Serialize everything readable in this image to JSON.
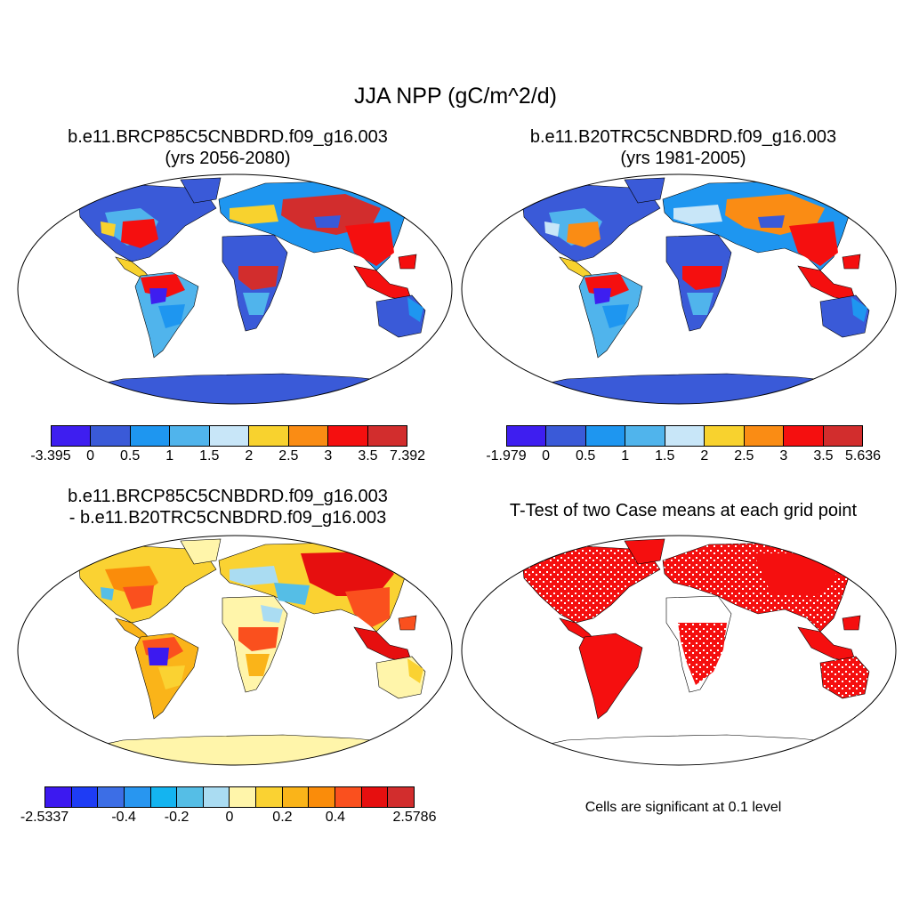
{
  "title": "JJA NPP (gC/m^2/d)",
  "panels": [
    {
      "title_lines": [
        "b.e11.BRCP85C5CNBDRD.f09_g16.003",
        "(yrs 2056-2080)"
      ],
      "colorbar": {
        "colors": [
          "#3e1ef0",
          "#3a5ad8",
          "#1e96f0",
          "#50b4ec",
          "#c8e6f8",
          "#f8d22e",
          "#fa8c14",
          "#f50f0f",
          "#d22d2d"
        ],
        "ticks": [
          "-3.395",
          "0",
          "0.5",
          "1",
          "1.5",
          "2",
          "2.5",
          "3",
          "3.5",
          "7.392"
        ]
      }
    },
    {
      "title_lines": [
        "b.e11.B20TRC5CNBDRD.f09_g16.003",
        "(yrs 1981-2005)"
      ],
      "colorbar": {
        "colors": [
          "#3e1ef0",
          "#3a5ad8",
          "#1e96f0",
          "#50b4ec",
          "#c8e6f8",
          "#f8d22e",
          "#fa8c14",
          "#f50f0f",
          "#d22d2d"
        ],
        "ticks": [
          "-1.979",
          "0",
          "0.5",
          "1",
          "1.5",
          "2",
          "2.5",
          "3",
          "3.5",
          "5.636"
        ]
      }
    },
    {
      "title_lines": [
        "b.e11.BRCP85C5CNBDRD.f09_g16.003",
        "- b.e11.B20TRC5CNBDRD.f09_g16.003"
      ],
      "colorbar": {
        "colors": [
          "#3c19f0",
          "#1e3cf5",
          "#3c6ee6",
          "#2896f0",
          "#14b4f0",
          "#55bee6",
          "#aadcf2",
          "#fff5aa",
          "#fad232",
          "#fab419",
          "#fa8c0a",
          "#fa501e",
          "#e60f0f",
          "#d22d2d"
        ],
        "ticks": [
          "-2.5337",
          "-0.4",
          "-0.2",
          "0",
          "0.2",
          "0.4",
          "2.5786"
        ]
      }
    },
    {
      "title_lines": [
        "T-Test of two Case means at each grid point"
      ],
      "note": "Cells are significant at 0.1 level"
    }
  ],
  "map_palette": {
    "ocean": "#ffffff",
    "coast": "#000000",
    "antarctica_abs": "#3a5ad8",
    "antarctica_diff": "#fff5aa",
    "significant": "#f50f0f"
  }
}
